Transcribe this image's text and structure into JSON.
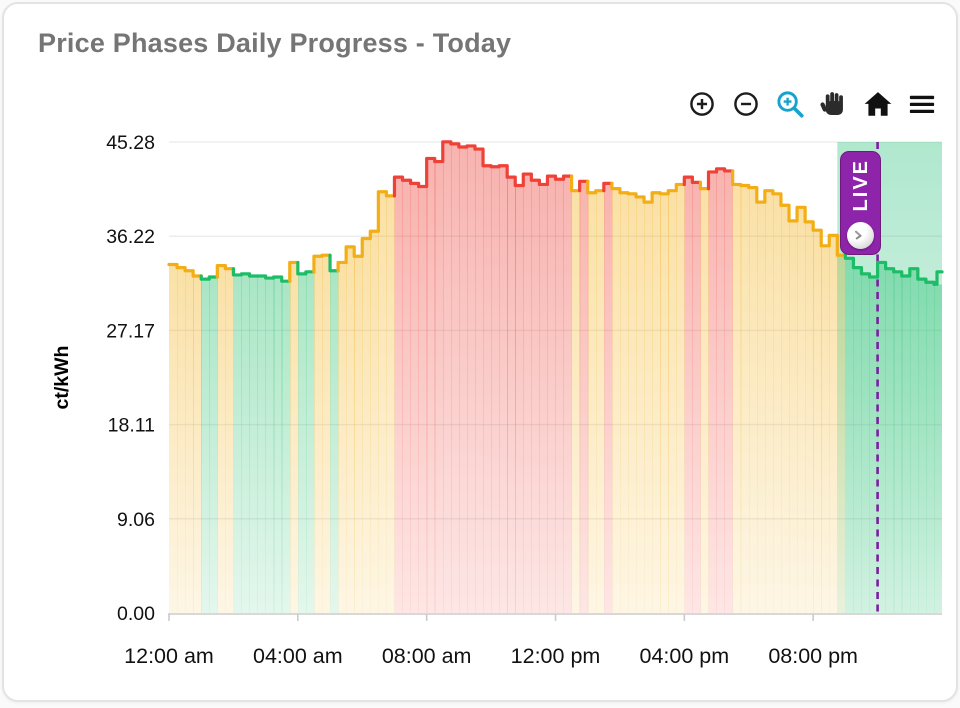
{
  "card": {
    "title": "Price Phases Daily Progress - Today"
  },
  "toolbar": {
    "icons": [
      "zoom-in",
      "zoom-out",
      "zoom",
      "pan",
      "home",
      "menu"
    ],
    "active_tool": "zoom",
    "active_color": "#17a2cf",
    "icon_color": "#1c1c1c"
  },
  "chart_data": {
    "type": "area",
    "subtype": "step-area-phases",
    "title": "Price Phases Daily Progress - Today",
    "xlabel": "",
    "ylabel": "ct/kWh",
    "ylim": [
      0,
      45.28
    ],
    "yticks": [
      0.0,
      9.06,
      18.11,
      27.17,
      36.22,
      45.28
    ],
    "ytick_labels": [
      "0.00",
      "9.06",
      "18.11",
      "27.17",
      "36.22",
      "45.28"
    ],
    "xtick_hours": [
      0,
      4,
      8,
      12,
      16,
      20
    ],
    "xtick_labels": [
      "12:00 am",
      "04:00 am",
      "08:00 am",
      "12:00 pm",
      "04:00 pm",
      "08:00 pm"
    ],
    "grid": true,
    "legend": "none",
    "step_minutes": 15,
    "values": [
      33.5,
      33.2,
      32.9,
      32.4,
      32.1,
      32.3,
      33.4,
      33.1,
      32.5,
      32.6,
      32.4,
      32.4,
      32.2,
      32.3,
      31.9,
      33.7,
      32.6,
      32.8,
      34.3,
      34.4,
      32.9,
      33.7,
      35.2,
      34.3,
      36.0,
      36.7,
      40.5,
      40.1,
      41.9,
      41.6,
      41.3,
      41.0,
      43.7,
      43.4,
      45.3,
      45.1,
      44.8,
      44.9,
      44.6,
      43.0,
      42.9,
      43.0,
      41.9,
      41.1,
      42.2,
      41.6,
      41.2,
      42.0,
      41.7,
      42.0,
      40.6,
      41.5,
      40.4,
      40.6,
      41.3,
      40.8,
      40.4,
      40.3,
      40.0,
      39.5,
      40.4,
      40.3,
      40.6,
      41.2,
      41.9,
      41.4,
      40.8,
      42.4,
      42.7,
      42.5,
      41.2,
      41.1,
      40.9,
      39.5,
      40.6,
      40.3,
      39.2,
      37.7,
      39.0,
      37.6,
      36.8,
      35.3,
      36.3,
      34.4,
      34.1,
      33.2,
      32.6,
      32.3,
      33.7,
      33.1,
      32.8,
      32.4,
      33.1,
      32.1,
      31.8,
      31.6
    ],
    "phases": [
      "Y",
      "Y",
      "Y",
      "Y",
      "G",
      "G",
      "Y",
      "Y",
      "G",
      "G",
      "G",
      "G",
      "G",
      "G",
      "G",
      "Y",
      "G",
      "G",
      "Y",
      "Y",
      "G",
      "Y",
      "Y",
      "Y",
      "Y",
      "Y",
      "Y",
      "Y",
      "R",
      "R",
      "R",
      "R",
      "R",
      "R",
      "R",
      "R",
      "R",
      "R",
      "R",
      "R",
      "R",
      "R",
      "R",
      "R",
      "R",
      "R",
      "R",
      "R",
      "R",
      "R",
      "Y",
      "R",
      "Y",
      "Y",
      "R",
      "Y",
      "Y",
      "Y",
      "Y",
      "Y",
      "Y",
      "Y",
      "Y",
      "Y",
      "R",
      "R",
      "Y",
      "R",
      "R",
      "R",
      "Y",
      "Y",
      "Y",
      "Y",
      "Y",
      "Y",
      "Y",
      "Y",
      "Y",
      "Y",
      "Y",
      "Y",
      "Y",
      "Y",
      "G",
      "G",
      "G",
      "G",
      "G",
      "G",
      "G",
      "G",
      "G",
      "G",
      "G",
      "G"
    ],
    "end_value": 32.8,
    "live": {
      "label": "LIVE",
      "band_start_hour": 20.75,
      "now_hour": 22.0
    },
    "colors": {
      "G": "#1cbd66",
      "Y": "#f2ae14",
      "R": "#ee4238",
      "live_band": "#2ec27e",
      "live_line": "#7b1fa2",
      "badge": "#8e24aa",
      "badge_border": "#6d1b7b",
      "grid": "#ededed",
      "axis": "#cbcbcb",
      "tick_text": "#111111",
      "title_text": "#757575"
    }
  }
}
